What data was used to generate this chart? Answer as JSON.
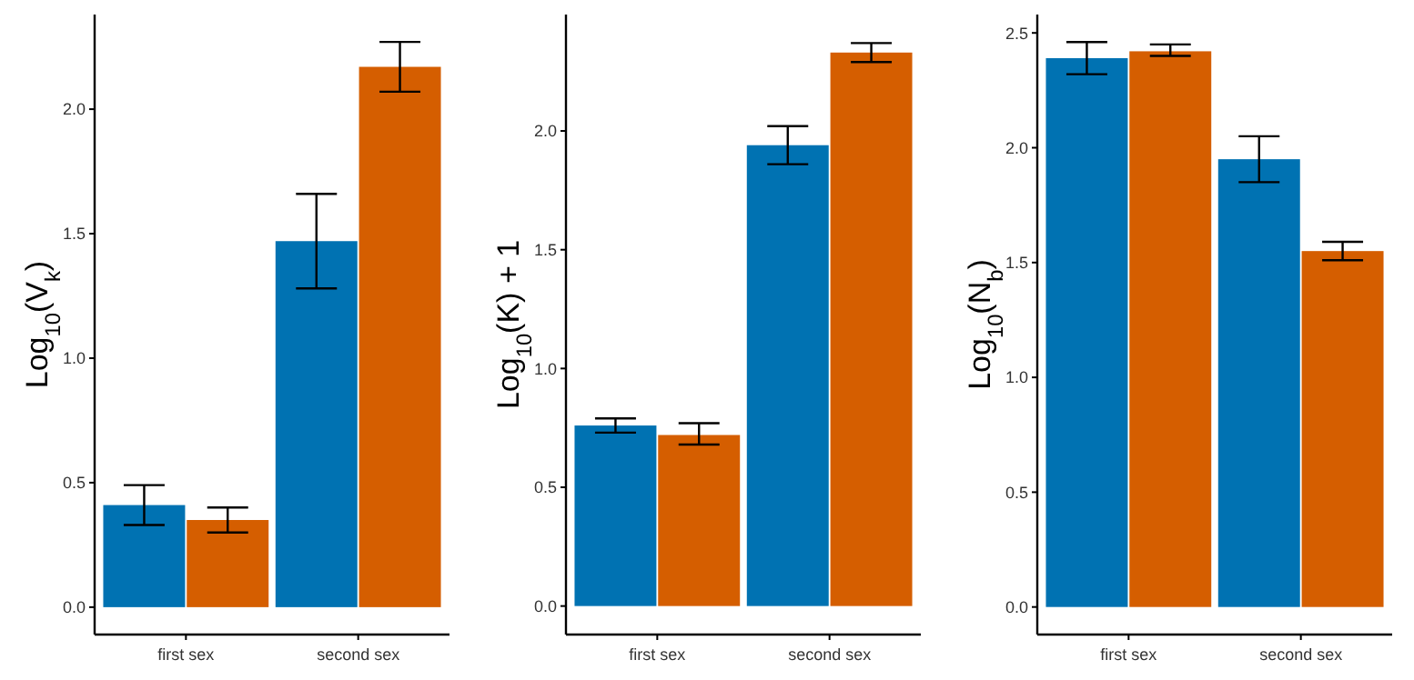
{
  "chart_data": [
    {
      "type": "bar",
      "ylabel": "Log$_{10}$(V$_{k}$)",
      "categories": [
        "first sex",
        "second sex"
      ],
      "ylim": [
        -0.11,
        2.38
      ],
      "yticks": [
        {
          "value": 0,
          "label": "0.0"
        },
        0.5,
        {
          "value": 1,
          "label": "1.0"
        },
        1.5,
        {
          "value": 2,
          "label": "2.0"
        }
      ],
      "grid": false,
      "series": [
        {
          "color": "#0072b2",
          "values": [
            0.41,
            1.47
          ],
          "errors": [
            [
              0.33,
              0.49
            ],
            [
              1.28,
              1.66
            ]
          ]
        },
        {
          "color": "#d55e00",
          "values": [
            0.35,
            2.17
          ],
          "errors": [
            [
              0.3,
              0.4
            ],
            [
              2.07,
              2.27
            ]
          ]
        }
      ]
    },
    {
      "type": "bar",
      "ylabel": "Log$_{10}$(K) + 1",
      "categories": [
        "first sex",
        "second sex"
      ],
      "ylim": [
        -0.12,
        2.49
      ],
      "yticks": [
        {
          "value": 0,
          "label": "0.0"
        },
        0.5,
        {
          "value": 1,
          "label": "1.0"
        },
        1.5,
        {
          "value": 2,
          "label": "2.0"
        }
      ],
      "grid": false,
      "series": [
        {
          "color": "#0072b2",
          "values": [
            0.76,
            1.94
          ],
          "errors": [
            [
              0.73,
              0.79
            ],
            [
              1.86,
              2.02
            ]
          ]
        },
        {
          "color": "#d55e00",
          "values": [
            0.72,
            2.33
          ],
          "errors": [
            [
              0.68,
              0.77
            ],
            [
              2.29,
              2.37
            ]
          ]
        }
      ]
    },
    {
      "type": "bar",
      "ylabel": "Log$_{10}$(N$_{b}$)",
      "categories": [
        "first sex",
        "second sex"
      ],
      "ylim": [
        -0.12,
        2.58
      ],
      "yticks": [
        {
          "value": 0,
          "label": "0.0"
        },
        0.5,
        {
          "value": 1,
          "label": "1.0"
        },
        1.5,
        {
          "value": 2,
          "label": "2.0"
        },
        2.5
      ],
      "grid": false,
      "series": [
        {
          "color": "#0072b2",
          "values": [
            2.39,
            1.95
          ],
          "errors": [
            [
              2.32,
              2.46
            ],
            [
              1.85,
              2.05
            ]
          ]
        },
        {
          "color": "#d55e00",
          "values": [
            2.42,
            1.55
          ],
          "errors": [
            [
              2.4,
              2.45
            ],
            [
              1.51,
              1.59
            ]
          ]
        }
      ]
    }
  ]
}
